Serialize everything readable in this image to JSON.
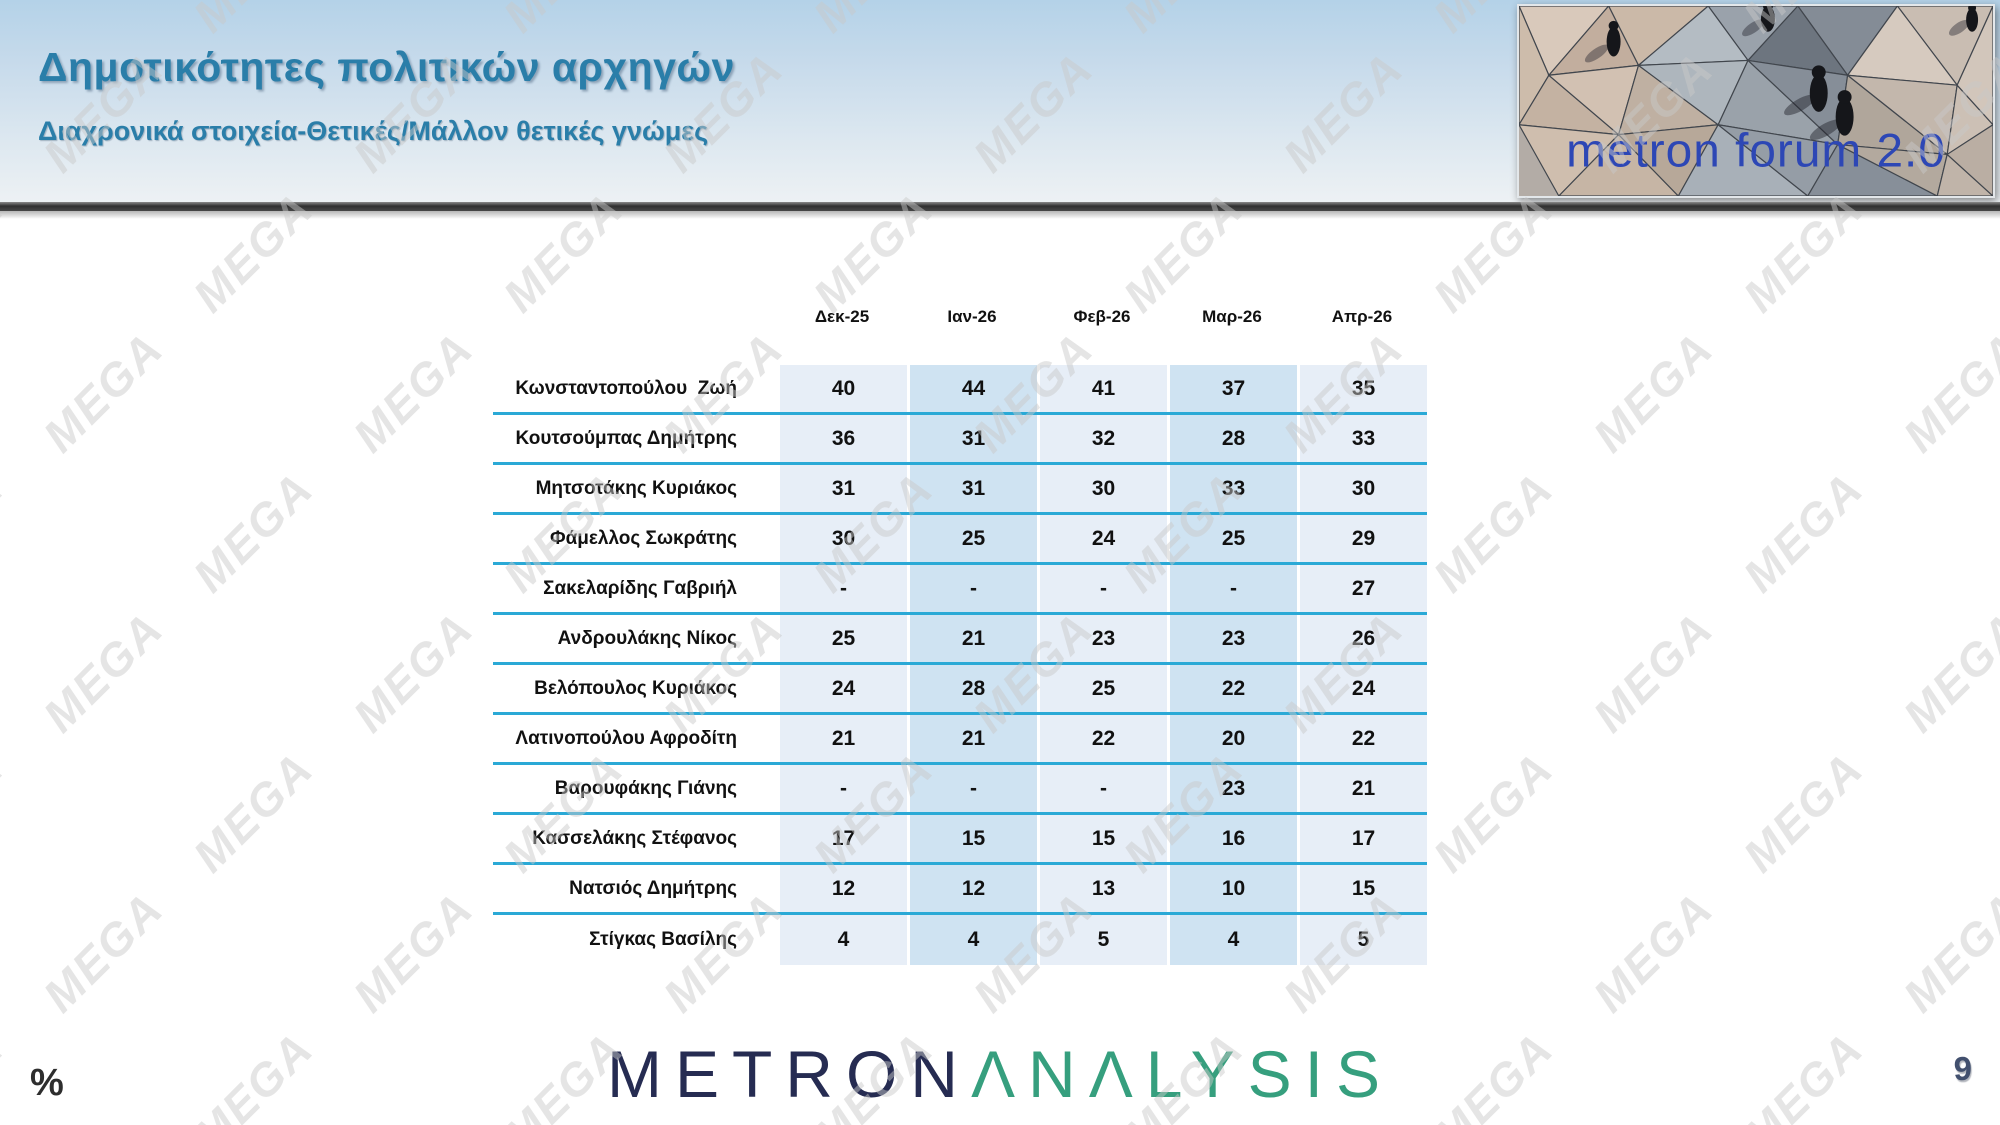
{
  "slide": {
    "title": "Δημοτικότητες πολιτικών αρχηγών",
    "subtitle": "Διαχρονικά στοιχεία-Θετικές/Μάλλον θετικές γνώμες",
    "watermark_text": "MEGA",
    "percent_symbol": "%",
    "page_number": "9"
  },
  "header_logo": {
    "text": "metron forum 2.0"
  },
  "footer_logo": {
    "part1": "METRON",
    "part2": "ΛNΛLYSIS"
  },
  "colors": {
    "accent_teal": "#2a7ea9",
    "row_line_cyan": "#2aa9d6",
    "cell_light": "#e7eef7",
    "cell_dark": "#cfe3f2",
    "brand_navy": "#262c52",
    "brand_green": "#369f7e",
    "logo_text_blue": "#2d47b5"
  },
  "chart_data": {
    "type": "table",
    "title": "Δημοτικότητες πολιτικών αρχηγών",
    "subtitle": "Διαχρονικά στοιχεία-Θετικές/Μάλλον θετικές γνώμες",
    "unit": "%",
    "columns": [
      "Δεκ-25",
      "Ιαν-26",
      "Φεβ-26",
      "Μαρ-26",
      "Απρ-26"
    ],
    "rows": [
      {
        "name": "Κωνσταντοπούλου  Ζωή",
        "values": [
          40,
          44,
          41,
          37,
          35
        ]
      },
      {
        "name": "Κουτσούμπας Δημήτρης",
        "values": [
          36,
          31,
          32,
          28,
          33
        ]
      },
      {
        "name": "Μητσοτάκης Κυριάκος",
        "values": [
          31,
          31,
          30,
          33,
          30
        ]
      },
      {
        "name": "Φάμελλος Σωκράτης",
        "values": [
          30,
          25,
          24,
          25,
          29
        ]
      },
      {
        "name": "Σακελαρίδης Γαβριήλ",
        "values": [
          "-",
          "-",
          "-",
          "-",
          27
        ]
      },
      {
        "name": "Ανδρουλάκης Νίκος",
        "values": [
          25,
          21,
          23,
          23,
          26
        ]
      },
      {
        "name": "Βελόπουλος Κυριάκος",
        "values": [
          24,
          28,
          25,
          22,
          24
        ]
      },
      {
        "name": "Λατινοπούλου Αφροδίτη",
        "values": [
          21,
          21,
          22,
          20,
          22
        ]
      },
      {
        "name": "Βαρουφάκης Γιάνης",
        "values": [
          "-",
          "-",
          "-",
          23,
          21
        ]
      },
      {
        "name": "Κασσελάκης Στέφανος",
        "values": [
          17,
          15,
          15,
          16,
          17
        ]
      },
      {
        "name": "Νατσιός Δημήτρης",
        "values": [
          12,
          12,
          13,
          10,
          15
        ]
      },
      {
        "name": "Στίγκας Βασίλης",
        "values": [
          4,
          4,
          5,
          4,
          5
        ]
      }
    ]
  }
}
